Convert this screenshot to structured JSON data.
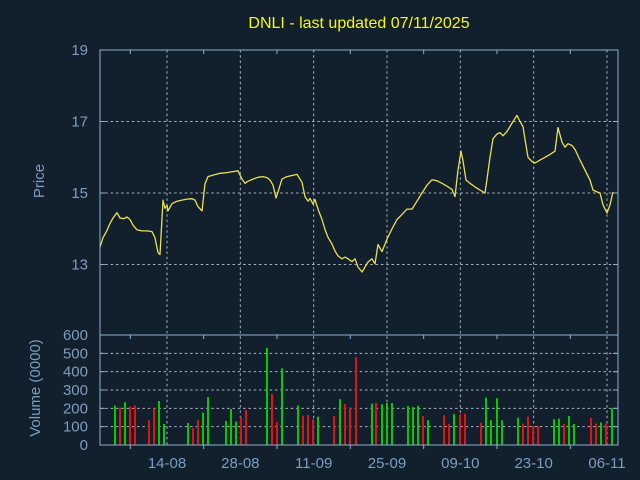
{
  "title": {
    "text": "DNLI - last updated 07/11/2025"
  },
  "price_axis": {
    "label": "Price",
    "ticks": [
      "19",
      "17",
      "15",
      "13"
    ]
  },
  "volume_axis": {
    "label": "Volume (0000)",
    "ticks": [
      "600",
      "500",
      "400",
      "300",
      "200",
      "100",
      "0"
    ]
  },
  "x_axis": {
    "ticks": [
      "14-08",
      "28-08",
      "11-09",
      "25-09",
      "09-10",
      "23-10",
      "06-11"
    ]
  },
  "colors": {
    "background": "#121f2d",
    "frame": "#8cb0d2",
    "grid": "#a6b2bd",
    "label": "#7f9dbf",
    "title": "#f9f900",
    "price_line": "#e9e150",
    "volume_up": "#00cd00",
    "volume_down": "#dc1414"
  },
  "chart_data": [
    {
      "type": "line",
      "name": "price",
      "title": "DNLI - last updated 07/11/2025",
      "ylabel": "Price",
      "ylim": [
        11.0,
        19.0
      ],
      "yticks": [
        19,
        17,
        15,
        13
      ],
      "grid": true,
      "points": [
        [
          100,
          13.48
        ],
        [
          103,
          13.75
        ],
        [
          107,
          13.95
        ],
        [
          110,
          14.15
        ],
        [
          113,
          14.3
        ],
        [
          117,
          14.45
        ],
        [
          120,
          14.3
        ],
        [
          124,
          14.28
        ],
        [
          127,
          14.33
        ],
        [
          130,
          14.26
        ],
        [
          133,
          14.1
        ],
        [
          137,
          13.97
        ],
        [
          142,
          13.94
        ],
        [
          147,
          13.94
        ],
        [
          152,
          13.92
        ],
        [
          155,
          13.75
        ],
        [
          158,
          13.33
        ],
        [
          160,
          13.28
        ],
        [
          163,
          14.8
        ],
        [
          165,
          14.57
        ],
        [
          167,
          14.66
        ],
        [
          168,
          14.5
        ],
        [
          172,
          14.7
        ],
        [
          177,
          14.77
        ],
        [
          182,
          14.8
        ],
        [
          187,
          14.83
        ],
        [
          192,
          14.84
        ],
        [
          195,
          14.8
        ],
        [
          198,
          14.62
        ],
        [
          202,
          14.5
        ],
        [
          205,
          15.26
        ],
        [
          208,
          15.46
        ],
        [
          213,
          15.5
        ],
        [
          220,
          15.55
        ],
        [
          227,
          15.57
        ],
        [
          233,
          15.6
        ],
        [
          238,
          15.62
        ],
        [
          242,
          15.39
        ],
        [
          245,
          15.27
        ],
        [
          248,
          15.33
        ],
        [
          253,
          15.39
        ],
        [
          258,
          15.44
        ],
        [
          263,
          15.46
        ],
        [
          267,
          15.43
        ],
        [
          270,
          15.36
        ],
        [
          273,
          15.22
        ],
        [
          276,
          14.86
        ],
        [
          278,
          15.03
        ],
        [
          282,
          15.39
        ],
        [
          287,
          15.46
        ],
        [
          292,
          15.49
        ],
        [
          297,
          15.52
        ],
        [
          302,
          15.3
        ],
        [
          305,
          14.9
        ],
        [
          308,
          14.77
        ],
        [
          310,
          14.85
        ],
        [
          313,
          14.69
        ],
        [
          315,
          14.82
        ],
        [
          318,
          14.55
        ],
        [
          322,
          14.26
        ],
        [
          325,
          13.98
        ],
        [
          328,
          13.76
        ],
        [
          332,
          13.57
        ],
        [
          335,
          13.38
        ],
        [
          338,
          13.24
        ],
        [
          342,
          13.16
        ],
        [
          345,
          13.21
        ],
        [
          348,
          13.16
        ],
        [
          352,
          13.08
        ],
        [
          355,
          13.16
        ],
        [
          358,
          12.93
        ],
        [
          362,
          12.79
        ],
        [
          365,
          12.93
        ],
        [
          368,
          13.07
        ],
        [
          372,
          13.16
        ],
        [
          375,
          13.02
        ],
        [
          378,
          13.56
        ],
        [
          382,
          13.36
        ],
        [
          387,
          13.71
        ],
        [
          392,
          14.0
        ],
        [
          397,
          14.26
        ],
        [
          402,
          14.4
        ],
        [
          407,
          14.55
        ],
        [
          412,
          14.55
        ],
        [
          417,
          14.77
        ],
        [
          422,
          15.0
        ],
        [
          427,
          15.22
        ],
        [
          432,
          15.37
        ],
        [
          437,
          15.34
        ],
        [
          442,
          15.27
        ],
        [
          447,
          15.19
        ],
        [
          452,
          15.1
        ],
        [
          455,
          14.9
        ],
        [
          458,
          15.64
        ],
        [
          461,
          16.17
        ],
        [
          463,
          15.9
        ],
        [
          466,
          15.36
        ],
        [
          470,
          15.27
        ],
        [
          475,
          15.17
        ],
        [
          480,
          15.08
        ],
        [
          485,
          15.0
        ],
        [
          487,
          15.39
        ],
        [
          490,
          16.0
        ],
        [
          493,
          16.52
        ],
        [
          497,
          16.65
        ],
        [
          500,
          16.69
        ],
        [
          503,
          16.6
        ],
        [
          507,
          16.72
        ],
        [
          510,
          16.86
        ],
        [
          513,
          17.0
        ],
        [
          517,
          17.17
        ],
        [
          520,
          17.0
        ],
        [
          523,
          16.86
        ],
        [
          525,
          16.5
        ],
        [
          528,
          16.0
        ],
        [
          532,
          15.88
        ],
        [
          535,
          15.84
        ],
        [
          540,
          15.92
        ],
        [
          545,
          16.0
        ],
        [
          550,
          16.08
        ],
        [
          555,
          16.17
        ],
        [
          558,
          16.83
        ],
        [
          562,
          16.42
        ],
        [
          565,
          16.28
        ],
        [
          568,
          16.38
        ],
        [
          572,
          16.33
        ],
        [
          575,
          16.22
        ],
        [
          580,
          15.92
        ],
        [
          585,
          15.64
        ],
        [
          590,
          15.36
        ],
        [
          593,
          15.08
        ],
        [
          597,
          15.03
        ],
        [
          600,
          15.0
        ],
        [
          603,
          14.67
        ],
        [
          607,
          14.44
        ],
        [
          610,
          14.67
        ],
        [
          613,
          15.03
        ]
      ]
    },
    {
      "type": "bar",
      "name": "volume",
      "ylabel": "Volume (0000)",
      "ylim": [
        0,
        600
      ],
      "yticks": [
        600,
        500,
        400,
        300,
        200,
        100,
        0
      ],
      "grid": true,
      "bars": [
        [
          115,
          215,
          "u"
        ],
        [
          120,
          205,
          "d"
        ],
        [
          125,
          233,
          "u"
        ],
        [
          130,
          210,
          "d"
        ],
        [
          135,
          215,
          "d"
        ],
        [
          149,
          135,
          "d"
        ],
        [
          154,
          200,
          "d"
        ],
        [
          159,
          240,
          "u"
        ],
        [
          164,
          115,
          "u"
        ],
        [
          188,
          120,
          "u"
        ],
        [
          193,
          92,
          "d"
        ],
        [
          198,
          136,
          "d"
        ],
        [
          203,
          177,
          "u"
        ],
        [
          208,
          262,
          "u"
        ],
        [
          226,
          131,
          "u"
        ],
        [
          231,
          196,
          "u"
        ],
        [
          236,
          128,
          "u"
        ],
        [
          241,
          153,
          "d"
        ],
        [
          246,
          191,
          "d"
        ],
        [
          267,
          530,
          "u"
        ],
        [
          272,
          280,
          "d"
        ],
        [
          277,
          125,
          "d"
        ],
        [
          282,
          418,
          "u"
        ],
        [
          298,
          215,
          "u"
        ],
        [
          303,
          160,
          "d"
        ],
        [
          308,
          165,
          "d"
        ],
        [
          313,
          140,
          "d"
        ],
        [
          318,
          155,
          "u"
        ],
        [
          334,
          158,
          "d"
        ],
        [
          340,
          250,
          "u"
        ],
        [
          345,
          225,
          "d"
        ],
        [
          350,
          205,
          "d"
        ],
        [
          356,
          478,
          "d"
        ],
        [
          372,
          225,
          "u"
        ],
        [
          376,
          230,
          "d"
        ],
        [
          382,
          222,
          "u"
        ],
        [
          387,
          229,
          "u"
        ],
        [
          392,
          229,
          "u"
        ],
        [
          408,
          213,
          "u"
        ],
        [
          413,
          207,
          "u"
        ],
        [
          418,
          213,
          "u"
        ],
        [
          423,
          158,
          "d"
        ],
        [
          428,
          135,
          "u"
        ],
        [
          444,
          162,
          "d"
        ],
        [
          449,
          116,
          "d"
        ],
        [
          454,
          168,
          "u"
        ],
        [
          460,
          168,
          "d"
        ],
        [
          465,
          171,
          "d"
        ],
        [
          481,
          122,
          "d"
        ],
        [
          486,
          258,
          "u"
        ],
        [
          491,
          135,
          "u"
        ],
        [
          497,
          255,
          "u"
        ],
        [
          502,
          135,
          "u"
        ],
        [
          518,
          148,
          "u"
        ],
        [
          523,
          116,
          "d"
        ],
        [
          528,
          155,
          "d"
        ],
        [
          533,
          104,
          "d"
        ],
        [
          538,
          104,
          "d"
        ],
        [
          554,
          140,
          "u"
        ],
        [
          559,
          143,
          "u"
        ],
        [
          564,
          115,
          "d"
        ],
        [
          569,
          158,
          "u"
        ],
        [
          574,
          115,
          "u"
        ],
        [
          591,
          148,
          "d"
        ],
        [
          596,
          117,
          "d"
        ],
        [
          601,
          123,
          "u"
        ],
        [
          606,
          117,
          "d"
        ],
        [
          612,
          200,
          "u"
        ]
      ]
    }
  ]
}
